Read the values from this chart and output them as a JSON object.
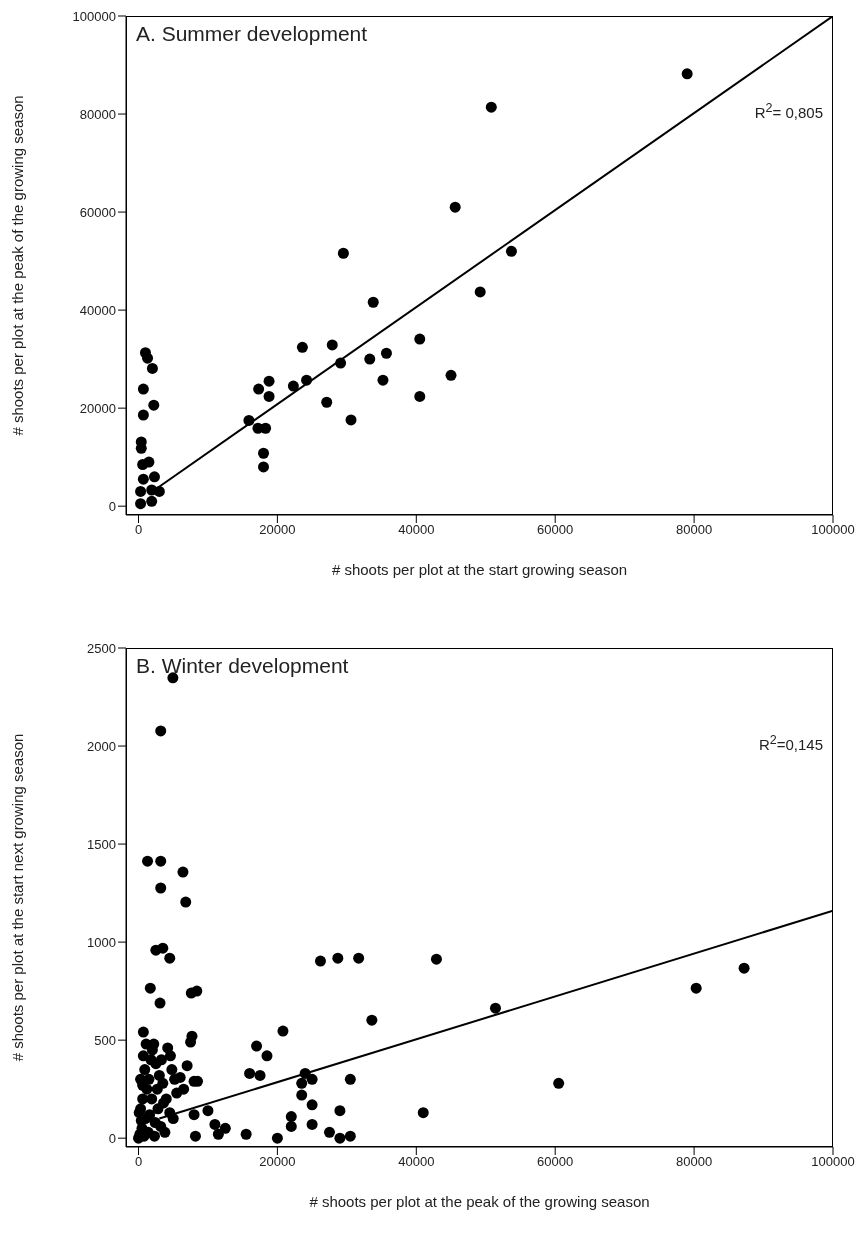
{
  "chart_data": [
    {
      "type": "scatter",
      "title": "A. Summer development",
      "xlabel": "# shoots per plot at the start growing season",
      "ylabel": "# shoots per plot at the peak of the growing season",
      "annotations": [
        "R$^{2}$= 0,805"
      ],
      "xlim": [
        -1800,
        100000
      ],
      "ylim": [
        -1800,
        100000
      ],
      "xticks": [
        0,
        20000,
        40000,
        60000,
        80000,
        100000
      ],
      "yticks": [
        0,
        20000,
        40000,
        60000,
        80000,
        100000
      ],
      "series": [
        {
          "type": "scatter",
          "marker": "circle",
          "color": "#000000",
          "x": [
            79000,
            50800,
            45600,
            29500,
            53700,
            49200,
            33800,
            40500,
            23600,
            27900,
            35700,
            33300,
            29100,
            45000,
            35200,
            24200,
            22300,
            18800,
            17300,
            18800,
            40500,
            27100,
            30600,
            15900,
            17200,
            18300,
            18000,
            18000,
            700,
            2200,
            700,
            400,
            400,
            1000,
            1300,
            2000,
            300,
            1900,
            3000,
            300,
            1900,
            700,
            2300,
            600,
            1500
          ],
          "values": [
            88200,
            81400,
            61000,
            51600,
            52000,
            43700,
            41600,
            34100,
            32400,
            32900,
            31200,
            30000,
            29200,
            26700,
            25700,
            25700,
            24500,
            25500,
            23900,
            22400,
            22400,
            21200,
            17600,
            17500,
            15900,
            15900,
            10800,
            8000,
            23900,
            20600,
            18600,
            13100,
            11800,
            31300,
            30200,
            28100,
            500,
            1000,
            3000,
            3000,
            3300,
            5500,
            6000,
            8500,
            9000
          ]
        },
        {
          "type": "line",
          "marker": "none",
          "color": "#000000",
          "x": [
            2000,
            100000
          ],
          "values": [
            3000,
            100000
          ]
        }
      ]
    },
    {
      "type": "scatter",
      "title": "B. Winter development",
      "xlabel": "# shoots per plot at the peak of the growing season",
      "ylabel": "# shoots per plot at the start next growing season",
      "annotations": [
        "R$^{2}$=0,145"
      ],
      "xlim": [
        -1800,
        100000
      ],
      "ylim": [
        -45,
        2500
      ],
      "xticks": [
        0,
        20000,
        40000,
        60000,
        80000,
        100000
      ],
      "yticks": [
        0,
        500,
        1000,
        1500,
        2000,
        2500
      ],
      "series": [
        {
          "type": "scatter",
          "marker": "circle",
          "color": "#000000",
          "x": [
            4950,
            3200,
            1300,
            3200,
            6400,
            3200,
            6800,
            2500,
            3500,
            4500,
            1700,
            7600,
            8400,
            3100,
            26200,
            28700,
            20800,
            700,
            7700,
            31700,
            42900,
            33600,
            51400,
            80300,
            87200,
            16000,
            17000,
            17500,
            18500,
            22000,
            22000,
            23500,
            23500,
            24000,
            25000,
            25000,
            25000,
            27500,
            29000,
            29000,
            30500,
            30500,
            41000,
            60500,
            20000,
            10000,
            11000,
            11500,
            12500,
            15500,
            0,
            200,
            500,
            800,
            1000,
            300,
            600,
            1200,
            1500,
            900,
            1800,
            2000,
            2200,
            700,
            1100,
            2500,
            3000,
            3500,
            4000,
            4500,
            5000,
            2800,
            3200,
            3800,
            1600,
            2400,
            1400,
            400,
            100,
            2700,
            3300,
            4200,
            4600,
            5200,
            5500,
            6000,
            6500,
            7000,
            7500,
            8000,
            8500,
            8000,
            8200,
            4800,
            1900,
            2300,
            3600,
            300,
            600
          ],
          "values": [
            2348,
            2077,
            1413,
            1413,
            1357,
            1276,
            1204,
            959,
            969,
            918,
            765,
            740,
            750,
            689,
            903,
            918,
            546,
            541,
            520,
            918,
            913,
            602,
            663,
            765,
            867,
            330,
            470,
            320,
            420,
            110,
            60,
            280,
            220,
            330,
            300,
            170,
            70,
            30,
            140,
            0,
            10,
            300,
            130,
            280,
            0,
            140,
            70,
            20,
            50,
            20,
            0,
            20,
            50,
            10,
            100,
            150,
            200,
            250,
            300,
            350,
            400,
            450,
            480,
            420,
            480,
            380,
            320,
            280,
            200,
            130,
            100,
            150,
            60,
            30,
            120,
            80,
            30,
            90,
            130,
            250,
            400,
            460,
            420,
            300,
            230,
            310,
            250,
            370,
            490,
            290,
            290,
            120,
            10,
            350,
            200,
            10,
            180,
            300,
            270
          ]
        },
        {
          "type": "line",
          "marker": "none",
          "color": "#000000",
          "x": [
            3000,
            100000
          ],
          "values": [
            100,
            1160
          ]
        }
      ]
    }
  ]
}
